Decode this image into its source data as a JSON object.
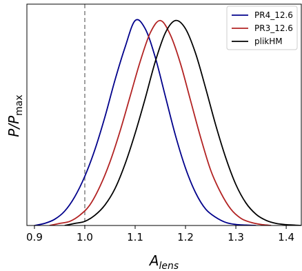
{
  "chart_data": {
    "type": "line",
    "xlabel_base": "A",
    "xlabel_sub": "lens",
    "ylabel_base": "P/P",
    "ylabel_sub": "max",
    "xlim": [
      0.885,
      1.43
    ],
    "ylim": [
      0,
      1.08
    ],
    "xticks": [
      0.9,
      1.0,
      1.1,
      1.2,
      1.3,
      1.4
    ],
    "xtick_labels": [
      "0.9",
      "1.0",
      "1.1",
      "1.2",
      "1.3",
      "1.4"
    ],
    "show_yticks": false,
    "grid": false,
    "legend_position": "top-right",
    "reference_line": {
      "x": 1.0,
      "style": "dashed",
      "color": "#808080"
    },
    "series": [
      {
        "name": "PR4_12.6",
        "color": "#00008b",
        "x": [
          0.9,
          0.92,
          0.94,
          0.96,
          0.98,
          1.0,
          1.02,
          1.04,
          1.06,
          1.08,
          1.1,
          1.12,
          1.14,
          1.16,
          1.18,
          1.2,
          1.22,
          1.24,
          1.26,
          1.28,
          1.3,
          1.32,
          1.34
        ],
        "y": [
          0.0,
          0.01,
          0.03,
          0.07,
          0.14,
          0.24,
          0.37,
          0.53,
          0.71,
          0.87,
          1.0,
          0.96,
          0.82,
          0.63,
          0.44,
          0.28,
          0.16,
          0.08,
          0.04,
          0.015,
          0.005,
          0.002,
          0.0
        ]
      },
      {
        "name": "PR3_12.6",
        "color": "#b22222",
        "x": [
          0.93,
          0.95,
          0.97,
          0.99,
          1.01,
          1.03,
          1.05,
          1.07,
          1.09,
          1.11,
          1.13,
          1.15,
          1.17,
          1.19,
          1.21,
          1.23,
          1.25,
          1.27,
          1.29,
          1.31,
          1.33,
          1.35,
          1.37
        ],
        "y": [
          0.0,
          0.01,
          0.02,
          0.05,
          0.1,
          0.19,
          0.31,
          0.46,
          0.63,
          0.8,
          0.94,
          1.0,
          0.93,
          0.79,
          0.61,
          0.43,
          0.27,
          0.16,
          0.08,
          0.035,
          0.015,
          0.005,
          0.0
        ]
      },
      {
        "name": "plikHM",
        "color": "#000000",
        "x": [
          0.96,
          0.98,
          1.0,
          1.02,
          1.04,
          1.06,
          1.08,
          1.1,
          1.12,
          1.14,
          1.16,
          1.18,
          1.2,
          1.22,
          1.24,
          1.26,
          1.28,
          1.3,
          1.32,
          1.34,
          1.36,
          1.38,
          1.4,
          1.43
        ],
        "y": [
          0.0,
          0.01,
          0.02,
          0.05,
          0.1,
          0.18,
          0.3,
          0.45,
          0.62,
          0.8,
          0.94,
          1.0,
          0.96,
          0.84,
          0.67,
          0.49,
          0.33,
          0.2,
          0.11,
          0.055,
          0.025,
          0.01,
          0.004,
          0.0
        ]
      }
    ]
  }
}
